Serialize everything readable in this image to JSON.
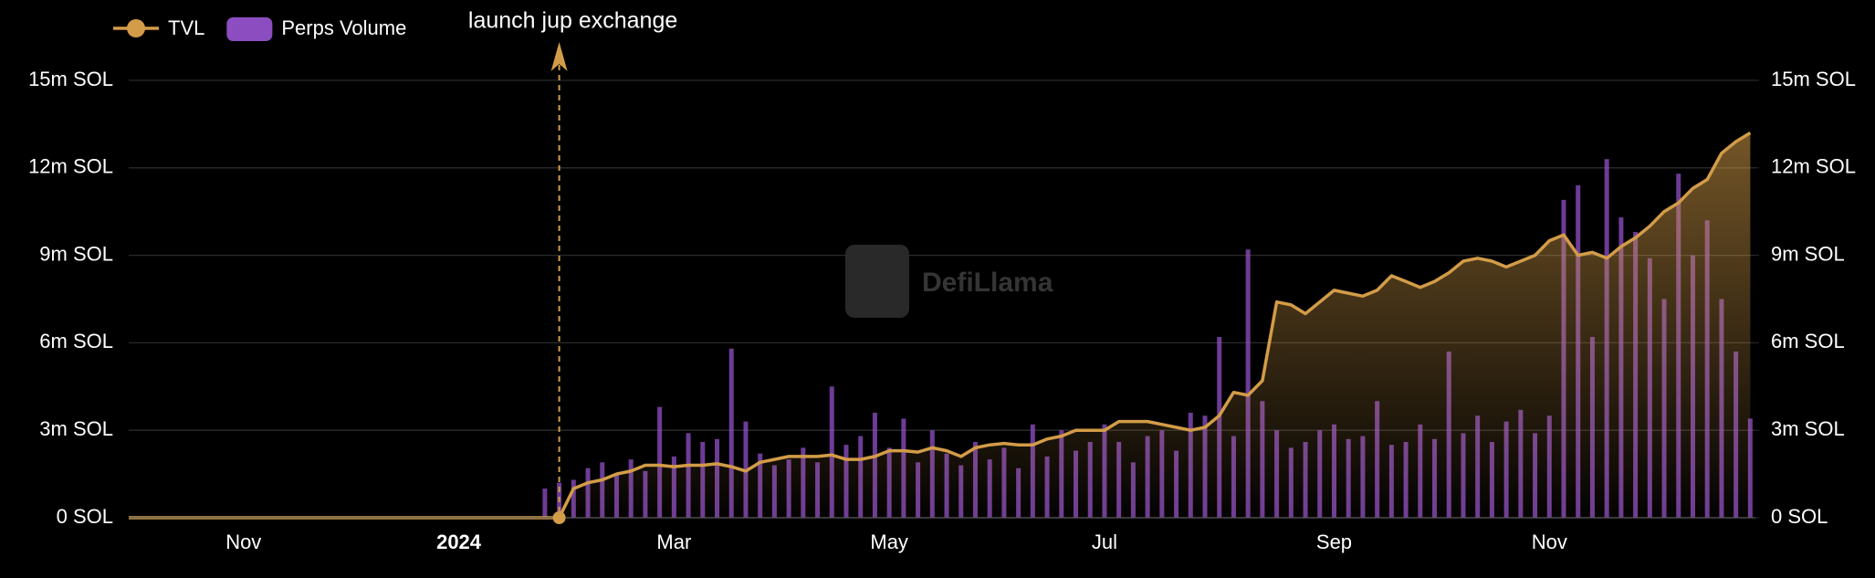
{
  "chart_data": {
    "type": "bar-line",
    "watermark": "DefiLlama",
    "annotations": [
      {
        "text": "launch jup exchange"
      }
    ],
    "categories": [
      null,
      null,
      null,
      null,
      null,
      null,
      null,
      null,
      "Nov",
      null,
      null,
      null,
      null,
      null,
      null,
      null,
      null,
      null,
      null,
      null,
      null,
      null,
      null,
      "2024",
      null,
      null,
      null,
      null,
      null,
      null,
      null,
      null,
      null,
      null,
      null,
      null,
      null,
      null,
      "Mar",
      null,
      null,
      null,
      null,
      null,
      null,
      null,
      null,
      null,
      null,
      null,
      null,
      null,
      null,
      "May",
      null,
      null,
      null,
      null,
      null,
      null,
      null,
      null,
      null,
      null,
      null,
      null,
      null,
      null,
      "Jul",
      null,
      null,
      null,
      null,
      null,
      null,
      null,
      null,
      null,
      null,
      null,
      null,
      null,
      null,
      null,
      "Sep",
      null,
      null,
      null,
      null,
      null,
      null,
      null,
      null,
      null,
      null,
      null,
      null,
      null,
      null,
      "Nov",
      null,
      null,
      null,
      null,
      null,
      null,
      null,
      null,
      null,
      null,
      null,
      null,
      null,
      null
    ],
    "series": [
      {
        "name": "TVL",
        "type": "line",
        "color": "#d39c48",
        "values": [
          0,
          0,
          0,
          0,
          0,
          0,
          0,
          0,
          0,
          0,
          0,
          0,
          0,
          0,
          0,
          0,
          0,
          0,
          0,
          0,
          0,
          0,
          0,
          0,
          0,
          0,
          0,
          0,
          0,
          0,
          0,
          1000000,
          1200000,
          1300000,
          1500000,
          1600000,
          1800000,
          1800000,
          1750000,
          1800000,
          1800000,
          1850000,
          1750000,
          1600000,
          1900000,
          2000000,
          2100000,
          2100000,
          2100000,
          2150000,
          2000000,
          2000000,
          2100000,
          2300000,
          2300000,
          2250000,
          2400000,
          2300000,
          2100000,
          2400000,
          2500000,
          2550000,
          2500000,
          2500000,
          2700000,
          2800000,
          3000000,
          3000000,
          3000000,
          3300000,
          3300000,
          3300000,
          3200000,
          3100000,
          3000000,
          3100000,
          3500000,
          4300000,
          4200000,
          4700000,
          7400000,
          7300000,
          7000000,
          7400000,
          7800000,
          7700000,
          7600000,
          7800000,
          8300000,
          8100000,
          7900000,
          8100000,
          8400000,
          8800000,
          8900000,
          8800000,
          8600000,
          8800000,
          9000000,
          9500000,
          9700000,
          9000000,
          9100000,
          8900000,
          9300000,
          9600000,
          10000000,
          10500000,
          10800000,
          11300000,
          11600000,
          12500000,
          12900000,
          13200000
        ]
      },
      {
        "name": "Perps Volume",
        "type": "bar",
        "axis": "y2",
        "color": "#9b55d6",
        "values": [
          null,
          null,
          null,
          null,
          null,
          null,
          null,
          null,
          null,
          null,
          null,
          null,
          null,
          null,
          null,
          null,
          null,
          null,
          null,
          null,
          null,
          null,
          null,
          null,
          null,
          null,
          null,
          null,
          null,
          1000000,
          1200000,
          1300000,
          1700000,
          1900000,
          1500000,
          2000000,
          1600000,
          3800000,
          2100000,
          2900000,
          2600000,
          2700000,
          5800000,
          3300000,
          2200000,
          1800000,
          2000000,
          2400000,
          1900000,
          4500000,
          2500000,
          2800000,
          3600000,
          2400000,
          3400000,
          1900000,
          3000000,
          2200000,
          1800000,
          2600000,
          2000000,
          2400000,
          1700000,
          3200000,
          2100000,
          3000000,
          2300000,
          2600000,
          3200000,
          2600000,
          1900000,
          2800000,
          3000000,
          2300000,
          3600000,
          3500000,
          6200000,
          2800000,
          9200000,
          4000000,
          3000000,
          2400000,
          2600000,
          3000000,
          3200000,
          2700000,
          2800000,
          4000000,
          2500000,
          2600000,
          3200000,
          2700000,
          5700000,
          2900000,
          3500000,
          2600000,
          3300000,
          3700000,
          2900000,
          3500000,
          10900000,
          11400000,
          6200000,
          12300000,
          10300000,
          9800000,
          8900000,
          7500000,
          11800000,
          9000000,
          10200000,
          7500000,
          5700000,
          3400000
        ]
      }
    ],
    "ylim": [
      0,
      15000000
    ],
    "yticks": [
      {
        "value": 0,
        "label": "0 SOL"
      },
      {
        "value": 3000000,
        "label": "3m SOL"
      },
      {
        "value": 6000000,
        "label": "6m SOL"
      },
      {
        "value": 9000000,
        "label": "9m SOL"
      },
      {
        "value": 12000000,
        "label": "12m SOL"
      },
      {
        "value": 15000000,
        "label": "15m SOL"
      }
    ],
    "y2lim": [
      0,
      15000000
    ],
    "y2ticks": [
      {
        "value": 0,
        "label": "0 SOL"
      },
      {
        "value": 3000000,
        "label": "3m SOL"
      },
      {
        "value": 6000000,
        "label": "6m SOL"
      },
      {
        "value": 9000000,
        "label": "9m SOL"
      },
      {
        "value": 12000000,
        "label": "12m SOL"
      },
      {
        "value": 15000000,
        "label": "15m SOL"
      }
    ],
    "grid": true,
    "legend": "top-left"
  }
}
